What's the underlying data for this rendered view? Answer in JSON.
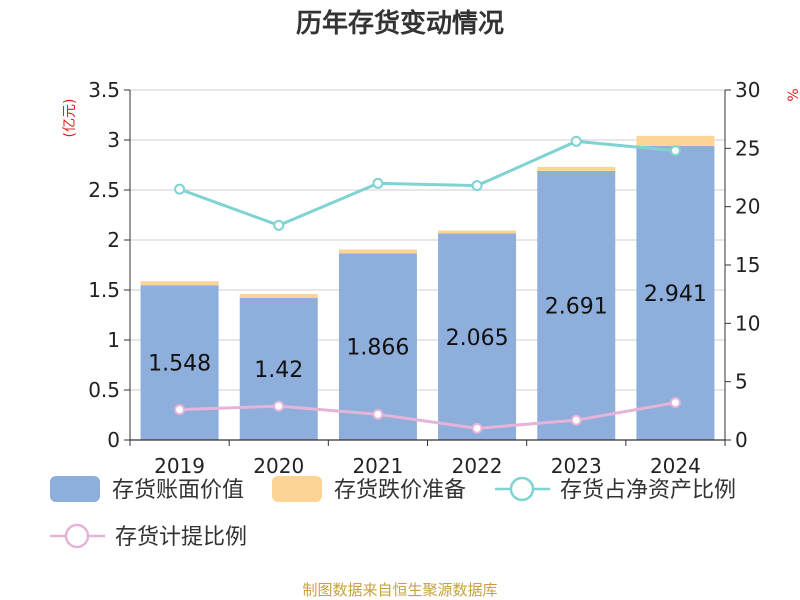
{
  "chart_data": {
    "type": "bar",
    "title": "历年存货变动情况",
    "categories": [
      "2019",
      "2020",
      "2021",
      "2022",
      "2023",
      "2024"
    ],
    "left_axis": {
      "unit_label": "(亿元)",
      "ylim": [
        0,
        3.5
      ],
      "ticks": [
        "0",
        "0.5",
        "1",
        "1.5",
        "2",
        "2.5",
        "3",
        "3.5"
      ]
    },
    "right_axis": {
      "unit_label": "%",
      "ylim": [
        0,
        30
      ],
      "ticks": [
        "0",
        "5",
        "10",
        "15",
        "20",
        "25",
        "30"
      ]
    },
    "series": [
      {
        "name": "存货账面价值",
        "kind": "bar",
        "axis": "left",
        "color": "#8eaedb",
        "values": [
          1.548,
          1.42,
          1.866,
          2.065,
          2.691,
          2.941
        ],
        "labels": [
          "1.548",
          "1.42",
          "1.866",
          "2.065",
          "2.691",
          "2.941"
        ]
      },
      {
        "name": "存货跌价准备",
        "kind": "bar-stacked",
        "axis": "left",
        "color": "#fcd595",
        "values": [
          0.04,
          0.04,
          0.04,
          0.03,
          0.04,
          0.1
        ]
      },
      {
        "name": "存货占净资产比例",
        "kind": "line",
        "axis": "right",
        "color": "#7fd3d3",
        "values": [
          21.5,
          18.4,
          22.0,
          21.8,
          25.6,
          24.8
        ]
      },
      {
        "name": "存货计提比例",
        "kind": "line",
        "axis": "right",
        "color": "#e6b3d9",
        "values": [
          2.6,
          2.9,
          2.2,
          1.0,
          1.7,
          3.2
        ]
      }
    ],
    "grid": true,
    "legend_position": "bottom"
  },
  "source_text": "制图数据来自恒生聚源数据库"
}
